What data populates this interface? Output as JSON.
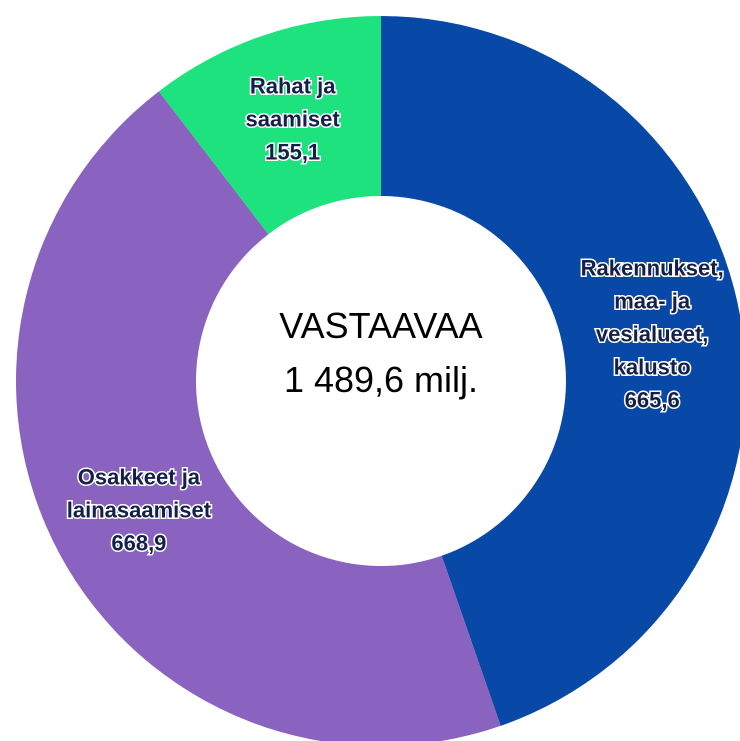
{
  "chart_data": {
    "type": "donut",
    "center_label": [
      "VASTAAVAA",
      "1 489,6 milj."
    ],
    "categories": [
      [
        "Rakennukset,",
        "maa- ja",
        "vesialueet,",
        "kalusto"
      ],
      [
        "Osakkeet ja",
        "lainasaamiset"
      ],
      [
        "Rahat ja",
        "saamiset"
      ]
    ],
    "values": [
      665.6,
      668.9,
      155.1
    ],
    "value_labels": [
      "665,6",
      "668,9",
      "155,1"
    ],
    "colors": [
      "#0849a8",
      "#8963bf",
      "#1ee27e"
    ]
  }
}
